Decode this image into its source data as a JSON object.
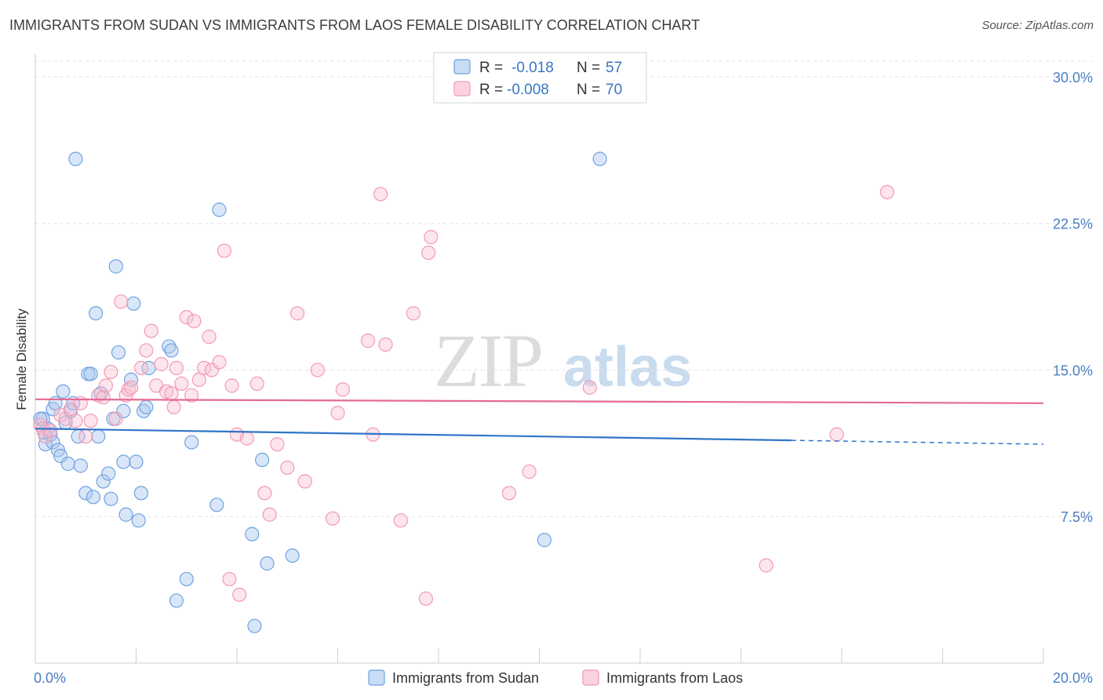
{
  "title": "IMMIGRANTS FROM SUDAN VS IMMIGRANTS FROM LAOS FEMALE DISABILITY CORRELATION CHART",
  "source": "Source: ZipAtlas.com",
  "watermark": {
    "zip": "ZIP",
    "atlas": "atlas"
  },
  "colors": {
    "sudan": "#6fa3e0",
    "laos": "#f29ab5",
    "sudan_line": "#2f74c9",
    "laos_line": "#e56a93"
  },
  "legend_stats": [
    {
      "r_label": "R =",
      "r_value": "-0.018",
      "n_label": "N =",
      "n_value": "57"
    },
    {
      "r_label": "R =",
      "r_value": "-0.008",
      "n_label": "N =",
      "n_value": "70"
    }
  ],
  "chart_data": {
    "type": "scatter",
    "xlabel": "",
    "ylabel": "Female Disability",
    "xlim": [
      0,
      20
    ],
    "ylim": [
      0,
      30.8
    ],
    "x_tick_labels": [
      "0.0%",
      "20.0%"
    ],
    "y_ticks": [
      7.5,
      15.0,
      22.5,
      30.0
    ],
    "y_tick_labels": [
      "7.5%",
      "15.0%",
      "22.5%",
      "30.0%"
    ],
    "grid": true,
    "series": [
      {
        "name": "Immigrants from Sudan",
        "trend": {
          "x0": 0.0,
          "y0": 12.0,
          "x1": 20.0,
          "y1": 11.2,
          "solid_until": 15.0
        },
        "points": [
          [
            0.15,
            12.5
          ],
          [
            0.18,
            11.8
          ],
          [
            0.2,
            11.2
          ],
          [
            0.25,
            12.0
          ],
          [
            0.3,
            11.7
          ],
          [
            0.35,
            11.3
          ],
          [
            0.35,
            13.0
          ],
          [
            0.4,
            13.3
          ],
          [
            0.45,
            10.9
          ],
          [
            0.5,
            10.6
          ],
          [
            0.55,
            13.9
          ],
          [
            0.6,
            12.3
          ],
          [
            0.65,
            10.2
          ],
          [
            0.7,
            12.9
          ],
          [
            0.75,
            13.3
          ],
          [
            0.85,
            11.6
          ],
          [
            0.9,
            10.1
          ],
          [
            1.0,
            8.7
          ],
          [
            1.05,
            14.8
          ],
          [
            1.1,
            14.8
          ],
          [
            1.15,
            8.5
          ],
          [
            1.2,
            17.9
          ],
          [
            1.25,
            11.6
          ],
          [
            1.3,
            13.8
          ],
          [
            1.35,
            9.3
          ],
          [
            1.45,
            9.7
          ],
          [
            1.5,
            8.4
          ],
          [
            1.55,
            12.5
          ],
          [
            1.6,
            20.3
          ],
          [
            1.65,
            15.9
          ],
          [
            1.75,
            12.9
          ],
          [
            1.75,
            10.3
          ],
          [
            1.8,
            7.6
          ],
          [
            1.9,
            14.5
          ],
          [
            1.95,
            18.4
          ],
          [
            2.0,
            10.3
          ],
          [
            2.05,
            7.3
          ],
          [
            2.1,
            8.7
          ],
          [
            2.15,
            12.9
          ],
          [
            2.2,
            13.1
          ],
          [
            2.25,
            15.1
          ],
          [
            2.65,
            16.2
          ],
          [
            2.7,
            16.0
          ],
          [
            2.8,
            3.2
          ],
          [
            3.0,
            4.3
          ],
          [
            3.1,
            11.3
          ],
          [
            3.6,
            8.1
          ],
          [
            3.65,
            23.2
          ],
          [
            4.3,
            6.6
          ],
          [
            4.35,
            1.9
          ],
          [
            4.5,
            10.4
          ],
          [
            4.6,
            5.1
          ],
          [
            5.1,
            5.5
          ],
          [
            0.8,
            25.8
          ],
          [
            11.2,
            25.8
          ],
          [
            10.1,
            6.3
          ],
          [
            0.1,
            12.5
          ]
        ]
      },
      {
        "name": "Immigrants from Laos",
        "trend": {
          "x0": 0.0,
          "y0": 13.5,
          "x1": 20.0,
          "y1": 13.3,
          "solid_until": 20.0
        },
        "points": [
          [
            0.1,
            12.2
          ],
          [
            0.15,
            12.0
          ],
          [
            0.2,
            11.6
          ],
          [
            0.3,
            11.9
          ],
          [
            0.5,
            12.7
          ],
          [
            0.6,
            12.5
          ],
          [
            0.7,
            13.0
          ],
          [
            0.8,
            12.4
          ],
          [
            0.9,
            13.3
          ],
          [
            1.0,
            11.6
          ],
          [
            1.1,
            12.4
          ],
          [
            1.25,
            13.7
          ],
          [
            1.35,
            13.6
          ],
          [
            1.4,
            14.2
          ],
          [
            1.5,
            14.9
          ],
          [
            1.6,
            12.5
          ],
          [
            1.7,
            18.5
          ],
          [
            1.8,
            13.7
          ],
          [
            1.85,
            14.0
          ],
          [
            1.9,
            14.1
          ],
          [
            2.1,
            15.1
          ],
          [
            2.2,
            16.0
          ],
          [
            2.3,
            17.0
          ],
          [
            2.4,
            14.2
          ],
          [
            2.5,
            15.3
          ],
          [
            2.6,
            13.9
          ],
          [
            2.7,
            13.8
          ],
          [
            2.75,
            13.1
          ],
          [
            2.8,
            15.1
          ],
          [
            2.9,
            14.3
          ],
          [
            3.0,
            17.7
          ],
          [
            3.1,
            13.7
          ],
          [
            3.15,
            17.5
          ],
          [
            3.25,
            14.5
          ],
          [
            3.35,
            15.1
          ],
          [
            3.45,
            16.7
          ],
          [
            3.5,
            15.0
          ],
          [
            3.65,
            15.4
          ],
          [
            3.75,
            21.1
          ],
          [
            3.85,
            4.3
          ],
          [
            3.9,
            14.2
          ],
          [
            4.0,
            11.7
          ],
          [
            4.05,
            3.5
          ],
          [
            4.2,
            11.5
          ],
          [
            4.4,
            14.3
          ],
          [
            4.55,
            8.7
          ],
          [
            4.65,
            7.6
          ],
          [
            4.8,
            11.2
          ],
          [
            5.0,
            10.0
          ],
          [
            5.2,
            17.9
          ],
          [
            5.35,
            9.3
          ],
          [
            5.6,
            15.0
          ],
          [
            5.9,
            7.4
          ],
          [
            6.0,
            12.8
          ],
          [
            6.1,
            14.0
          ],
          [
            6.6,
            16.5
          ],
          [
            6.7,
            11.7
          ],
          [
            6.85,
            24.0
          ],
          [
            6.95,
            16.3
          ],
          [
            7.25,
            7.3
          ],
          [
            7.5,
            17.9
          ],
          [
            7.8,
            21.0
          ],
          [
            7.85,
            21.8
          ],
          [
            7.75,
            3.3
          ],
          [
            9.4,
            8.7
          ],
          [
            9.8,
            9.8
          ],
          [
            11.0,
            14.1
          ],
          [
            14.5,
            5.0
          ],
          [
            15.9,
            11.7
          ],
          [
            16.9,
            24.1
          ]
        ]
      }
    ]
  },
  "bottom_legend": [
    "Immigrants from Sudan",
    "Immigrants from Laos"
  ]
}
